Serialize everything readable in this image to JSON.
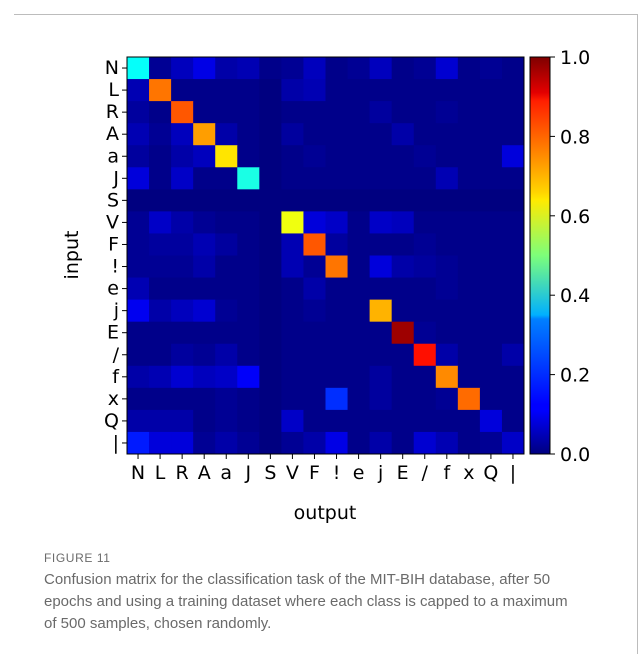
{
  "figure": {
    "label": "FIGURE 11",
    "caption": "Confusion matrix for the classification task of the MIT-BIH database, after 50 epochs and using a training dataset where each class is capped to a maximum of 500 samples, chosen randomly."
  },
  "chart_data": {
    "type": "heatmap",
    "title": "",
    "xlabel": "output",
    "ylabel": "input",
    "x_categories": [
      "N",
      "L",
      "R",
      "A",
      "a",
      "J",
      "S",
      "V",
      "F",
      "!",
      "e",
      "j",
      "E",
      "/",
      "f",
      "x",
      "Q",
      "|"
    ],
    "y_categories": [
      "N",
      "L",
      "R",
      "A",
      "a",
      "J",
      "S",
      "V",
      "F",
      "!",
      "e",
      "j",
      "E",
      "/",
      "f",
      "x",
      "Q",
      "|"
    ],
    "values": [
      [
        0.38,
        0.02,
        0.06,
        0.1,
        0.04,
        0.05,
        0.01,
        0.02,
        0.06,
        0.01,
        0.02,
        0.06,
        0.01,
        0.02,
        0.08,
        0.01,
        0.02,
        0.01
      ],
      [
        0.05,
        0.76,
        0.01,
        0.01,
        0.01,
        0.01,
        0.0,
        0.04,
        0.05,
        0.01,
        0.01,
        0.01,
        0.01,
        0.01,
        0.01,
        0.01,
        0.01,
        0.01
      ],
      [
        0.03,
        0.01,
        0.79,
        0.01,
        0.01,
        0.01,
        0.0,
        0.01,
        0.01,
        0.01,
        0.01,
        0.03,
        0.01,
        0.01,
        0.02,
        0.01,
        0.01,
        0.01
      ],
      [
        0.05,
        0.02,
        0.06,
        0.72,
        0.04,
        0.01,
        0.0,
        0.03,
        0.01,
        0.01,
        0.01,
        0.01,
        0.04,
        0.01,
        0.01,
        0.01,
        0.01,
        0.01
      ],
      [
        0.03,
        0.01,
        0.04,
        0.06,
        0.65,
        0.01,
        0.0,
        0.01,
        0.02,
        0.01,
        0.01,
        0.01,
        0.01,
        0.02,
        0.01,
        0.01,
        0.01,
        0.09
      ],
      [
        0.09,
        0.01,
        0.07,
        0.01,
        0.01,
        0.4,
        0.0,
        0.01,
        0.01,
        0.01,
        0.01,
        0.01,
        0.01,
        0.01,
        0.05,
        0.01,
        0.01,
        0.01
      ],
      [
        0.0,
        0.0,
        0.0,
        0.0,
        0.0,
        0.0,
        0.0,
        0.0,
        0.0,
        0.0,
        0.0,
        0.0,
        0.0,
        0.0,
        0.0,
        0.0,
        0.0,
        0.0
      ],
      [
        0.02,
        0.07,
        0.04,
        0.02,
        0.01,
        0.01,
        0.0,
        0.61,
        0.09,
        0.07,
        0.01,
        0.07,
        0.06,
        0.01,
        0.01,
        0.01,
        0.01,
        0.01
      ],
      [
        0.02,
        0.03,
        0.03,
        0.05,
        0.03,
        0.01,
        0.0,
        0.05,
        0.79,
        0.03,
        0.01,
        0.01,
        0.01,
        0.02,
        0.01,
        0.01,
        0.01,
        0.01
      ],
      [
        0.02,
        0.02,
        0.02,
        0.04,
        0.01,
        0.01,
        0.0,
        0.05,
        0.02,
        0.76,
        0.01,
        0.09,
        0.04,
        0.03,
        0.02,
        0.01,
        0.01,
        0.01
      ],
      [
        0.05,
        0.01,
        0.01,
        0.01,
        0.01,
        0.01,
        0.0,
        0.01,
        0.04,
        0.01,
        0.01,
        0.01,
        0.01,
        0.01,
        0.02,
        0.01,
        0.01,
        0.01
      ],
      [
        0.11,
        0.04,
        0.06,
        0.08,
        0.02,
        0.01,
        0.0,
        0.01,
        0.02,
        0.01,
        0.01,
        0.7,
        0.01,
        0.01,
        0.01,
        0.01,
        0.01,
        0.01
      ],
      [
        0.01,
        0.01,
        0.01,
        0.01,
        0.01,
        0.01,
        0.0,
        0.01,
        0.01,
        0.01,
        0.01,
        0.01,
        0.97,
        0.02,
        0.01,
        0.01,
        0.01,
        0.01
      ],
      [
        0.01,
        0.01,
        0.03,
        0.02,
        0.04,
        0.01,
        0.0,
        0.01,
        0.01,
        0.01,
        0.01,
        0.01,
        0.01,
        0.86,
        0.04,
        0.01,
        0.01,
        0.04
      ],
      [
        0.04,
        0.05,
        0.08,
        0.06,
        0.07,
        0.12,
        0.0,
        0.01,
        0.01,
        0.01,
        0.01,
        0.03,
        0.01,
        0.01,
        0.74,
        0.01,
        0.01,
        0.01
      ],
      [
        0.01,
        0.01,
        0.01,
        0.01,
        0.02,
        0.01,
        0.0,
        0.01,
        0.01,
        0.17,
        0.01,
        0.03,
        0.01,
        0.01,
        0.02,
        0.77,
        0.01,
        0.01
      ],
      [
        0.04,
        0.04,
        0.04,
        0.01,
        0.02,
        0.01,
        0.0,
        0.07,
        0.01,
        0.01,
        0.01,
        0.01,
        0.01,
        0.01,
        0.01,
        0.01,
        0.09,
        0.01
      ],
      [
        0.15,
        0.09,
        0.09,
        0.02,
        0.04,
        0.02,
        0.0,
        0.02,
        0.04,
        0.1,
        0.01,
        0.04,
        0.01,
        0.08,
        0.05,
        0.01,
        0.02,
        0.07
      ]
    ],
    "colorbar": {
      "colormap": "jet",
      "range": [
        0.0,
        1.0
      ],
      "ticks": [
        "0.0",
        "0.2",
        "0.4",
        "0.6",
        "0.8",
        "1.0"
      ]
    }
  }
}
